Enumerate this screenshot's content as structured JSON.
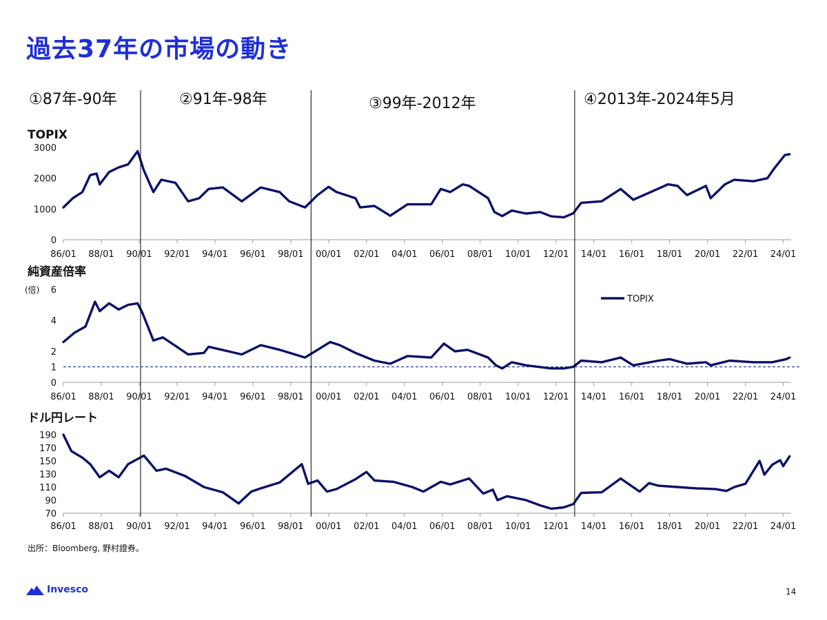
{
  "slide": {
    "title": "過去37年の市場の動き",
    "source": "出所：Bloomberg, 野村證券。",
    "brand": "Invesco",
    "page_number": "14"
  },
  "periods": [
    {
      "label": "①87年-90年",
      "date": "1990-01"
    },
    {
      "label": "②91年-98年",
      "date": "1999-01"
    },
    {
      "label": "③99年-2012年",
      "date": "2012-12"
    },
    {
      "label": "④2013年-2024年5月"
    }
  ],
  "colors": {
    "title": "#1f2fd6",
    "series": "#0a1168",
    "axis": "#999999",
    "reference_line": "#2b3a9c",
    "divider": "#000000"
  },
  "chart_data": [
    {
      "type": "line",
      "title": "TOPIX",
      "x_range": [
        "1986-01",
        "2024-05"
      ],
      "x_ticks": [
        "86/01",
        "88/01",
        "90/01",
        "92/01",
        "94/01",
        "96/01",
        "98/01",
        "00/01",
        "02/01",
        "04/01",
        "06/01",
        "08/01",
        "10/01",
        "12/01",
        "14/01",
        "16/01",
        "18/01",
        "20/01",
        "22/01",
        "24/01"
      ],
      "y_ticks": [
        "0",
        "1000",
        "2000",
        "3000"
      ],
      "ylim": [
        0,
        3000
      ],
      "grid": false,
      "series": [
        {
          "values": [
            [
              "1986-01",
              1050
            ],
            [
              "1986-07",
              1350
            ],
            [
              "1987-01",
              1550
            ],
            [
              "1987-06",
              2100
            ],
            [
              "1987-10",
              2150
            ],
            [
              "1987-12",
              1800
            ],
            [
              "1988-06",
              2200
            ],
            [
              "1988-12",
              2350
            ],
            [
              "1989-06",
              2450
            ],
            [
              "1989-12",
              2880
            ],
            [
              "1990-04",
              2250
            ],
            [
              "1990-10",
              1550
            ],
            [
              "1991-03",
              1950
            ],
            [
              "1991-12",
              1850
            ],
            [
              "1992-08",
              1250
            ],
            [
              "1993-03",
              1350
            ],
            [
              "1993-09",
              1650
            ],
            [
              "1994-06",
              1700
            ],
            [
              "1995-06",
              1250
            ],
            [
              "1996-06",
              1700
            ],
            [
              "1997-06",
              1550
            ],
            [
              "1997-12",
              1250
            ],
            [
              "1998-10",
              1050
            ],
            [
              "1999-06",
              1450
            ],
            [
              "2000-01",
              1720
            ],
            [
              "2000-06",
              1550
            ],
            [
              "2001-06",
              1350
            ],
            [
              "2001-09",
              1050
            ],
            [
              "2002-06",
              1100
            ],
            [
              "2003-04",
              780
            ],
            [
              "2004-03",
              1150
            ],
            [
              "2005-06",
              1150
            ],
            [
              "2005-12",
              1650
            ],
            [
              "2006-06",
              1550
            ],
            [
              "2007-02",
              1800
            ],
            [
              "2007-06",
              1750
            ],
            [
              "2008-06",
              1350
            ],
            [
              "2008-10",
              900
            ],
            [
              "2009-03",
              770
            ],
            [
              "2009-09",
              950
            ],
            [
              "2010-06",
              850
            ],
            [
              "2011-03",
              900
            ],
            [
              "2011-10",
              760
            ],
            [
              "2012-06",
              730
            ],
            [
              "2012-12",
              860
            ],
            [
              "2013-05",
              1200
            ],
            [
              "2014-06",
              1250
            ],
            [
              "2015-06",
              1650
            ],
            [
              "2016-02",
              1300
            ],
            [
              "2017-01",
              1550
            ],
            [
              "2017-12",
              1800
            ],
            [
              "2018-06",
              1750
            ],
            [
              "2018-12",
              1450
            ],
            [
              "2019-12",
              1750
            ],
            [
              "2020-03",
              1350
            ],
            [
              "2020-12",
              1800
            ],
            [
              "2021-06",
              1950
            ],
            [
              "2022-06",
              1900
            ],
            [
              "2023-03",
              2000
            ],
            [
              "2023-07",
              2300
            ],
            [
              "2024-02",
              2750
            ],
            [
              "2024-05",
              2780
            ]
          ]
        }
      ]
    },
    {
      "type": "line",
      "title": "純資産倍率",
      "ylabel": "(倍)",
      "x_range": [
        "1986-01",
        "2024-05"
      ],
      "x_ticks": [
        "86/01",
        "88/01",
        "90/01",
        "92/01",
        "94/01",
        "96/01",
        "98/01",
        "00/01",
        "02/01",
        "04/01",
        "06/01",
        "08/01",
        "10/01",
        "12/01",
        "14/01",
        "16/01",
        "18/01",
        "20/01",
        "22/01",
        "24/01"
      ],
      "y_ticks": [
        "0",
        "1",
        "2",
        "4",
        "6"
      ],
      "ylim": [
        0,
        6
      ],
      "reference_line": 1,
      "legend": {
        "position": "top-right",
        "entries": [
          "TOPIX"
        ]
      },
      "grid": false,
      "series": [
        {
          "name": "TOPIX",
          "values": [
            [
              "1986-01",
              2.6
            ],
            [
              "1986-08",
              3.2
            ],
            [
              "1987-03",
              3.6
            ],
            [
              "1987-09",
              5.2
            ],
            [
              "1987-12",
              4.6
            ],
            [
              "1988-06",
              5.1
            ],
            [
              "1988-12",
              4.7
            ],
            [
              "1989-06",
              5.0
            ],
            [
              "1989-12",
              5.1
            ],
            [
              "1990-03",
              4.5
            ],
            [
              "1990-10",
              2.7
            ],
            [
              "1991-04",
              2.9
            ],
            [
              "1992-08",
              1.8
            ],
            [
              "1993-06",
              1.9
            ],
            [
              "1993-09",
              2.3
            ],
            [
              "1995-06",
              1.8
            ],
            [
              "1996-06",
              2.4
            ],
            [
              "1997-06",
              2.1
            ],
            [
              "1998-10",
              1.6
            ],
            [
              "1999-06",
              2.1
            ],
            [
              "2000-02",
              2.6
            ],
            [
              "2000-08",
              2.4
            ],
            [
              "2001-06",
              1.9
            ],
            [
              "2002-06",
              1.4
            ],
            [
              "2003-04",
              1.2
            ],
            [
              "2004-03",
              1.7
            ],
            [
              "2005-06",
              1.6
            ],
            [
              "2006-02",
              2.5
            ],
            [
              "2006-09",
              2.0
            ],
            [
              "2007-05",
              2.1
            ],
            [
              "2008-06",
              1.6
            ],
            [
              "2008-11",
              1.1
            ],
            [
              "2009-03",
              0.9
            ],
            [
              "2009-09",
              1.3
            ],
            [
              "2010-06",
              1.1
            ],
            [
              "2011-10",
              0.9
            ],
            [
              "2012-06",
              0.9
            ],
            [
              "2012-12",
              1.0
            ],
            [
              "2013-05",
              1.4
            ],
            [
              "2014-06",
              1.3
            ],
            [
              "2015-06",
              1.6
            ],
            [
              "2016-02",
              1.1
            ],
            [
              "2017-06",
              1.4
            ],
            [
              "2018-01",
              1.5
            ],
            [
              "2018-12",
              1.2
            ],
            [
              "2019-12",
              1.3
            ],
            [
              "2020-03",
              1.1
            ],
            [
              "2021-03",
              1.4
            ],
            [
              "2022-06",
              1.3
            ],
            [
              "2023-06",
              1.3
            ],
            [
              "2024-03",
              1.5
            ],
            [
              "2024-05",
              1.6
            ]
          ]
        }
      ]
    },
    {
      "type": "line",
      "title": "ドル円レート",
      "x_range": [
        "1986-01",
        "2024-05"
      ],
      "x_ticks": [
        "86/01",
        "88/01",
        "90/01",
        "92/01",
        "94/01",
        "96/01",
        "98/01",
        "00/01",
        "02/01",
        "04/01",
        "06/01",
        "08/01",
        "10/01",
        "12/01",
        "14/01",
        "16/01",
        "18/01",
        "20/01",
        "22/01",
        "24/01"
      ],
      "y_ticks": [
        "70",
        "90",
        "110",
        "130",
        "150",
        "170",
        "190"
      ],
      "ylim": [
        70,
        190
      ],
      "grid": false,
      "series": [
        {
          "values": [
            [
              "1986-01",
              190
            ],
            [
              "1986-06",
              165
            ],
            [
              "1987-01",
              155
            ],
            [
              "1987-06",
              145
            ],
            [
              "1987-12",
              125
            ],
            [
              "1988-06",
              135
            ],
            [
              "1988-12",
              125
            ],
            [
              "1989-06",
              145
            ],
            [
              "1990-04",
              158
            ],
            [
              "1990-12",
              135
            ],
            [
              "1991-06",
              138
            ],
            [
              "1992-06",
              127
            ],
            [
              "1993-06",
              110
            ],
            [
              "1994-06",
              102
            ],
            [
              "1995-04",
              85
            ],
            [
              "1995-12",
              103
            ],
            [
              "1996-06",
              108
            ],
            [
              "1997-06",
              117
            ],
            [
              "1998-08",
              145
            ],
            [
              "1998-12",
              115
            ],
            [
              "1999-06",
              120
            ],
            [
              "1999-12",
              103
            ],
            [
              "2000-06",
              107
            ],
            [
              "2001-06",
              122
            ],
            [
              "2002-01",
              133
            ],
            [
              "2002-06",
              120
            ],
            [
              "2003-06",
              118
            ],
            [
              "2004-06",
              110
            ],
            [
              "2005-01",
              103
            ],
            [
              "2005-12",
              118
            ],
            [
              "2006-06",
              114
            ],
            [
              "2007-06",
              123
            ],
            [
              "2008-03",
              100
            ],
            [
              "2008-09",
              106
            ],
            [
              "2008-12",
              90
            ],
            [
              "2009-06",
              96
            ],
            [
              "2010-06",
              90
            ],
            [
              "2011-03",
              82
            ],
            [
              "2011-10",
              77
            ],
            [
              "2012-06",
              79
            ],
            [
              "2012-12",
              84
            ],
            [
              "2013-05",
              101
            ],
            [
              "2014-06",
              102
            ],
            [
              "2015-06",
              123
            ],
            [
              "2016-06",
              103
            ],
            [
              "2016-12",
              116
            ],
            [
              "2017-06",
              112
            ],
            [
              "2018-06",
              110
            ],
            [
              "2019-06",
              108
            ],
            [
              "2020-06",
              107
            ],
            [
              "2021-01",
              104
            ],
            [
              "2021-06",
              110
            ],
            [
              "2022-01",
              115
            ],
            [
              "2022-10",
              150
            ],
            [
              "2023-01",
              129
            ],
            [
              "2023-06",
              144
            ],
            [
              "2023-11",
              151
            ],
            [
              "2024-01",
              142
            ],
            [
              "2024-05",
              157
            ]
          ]
        }
      ]
    }
  ]
}
